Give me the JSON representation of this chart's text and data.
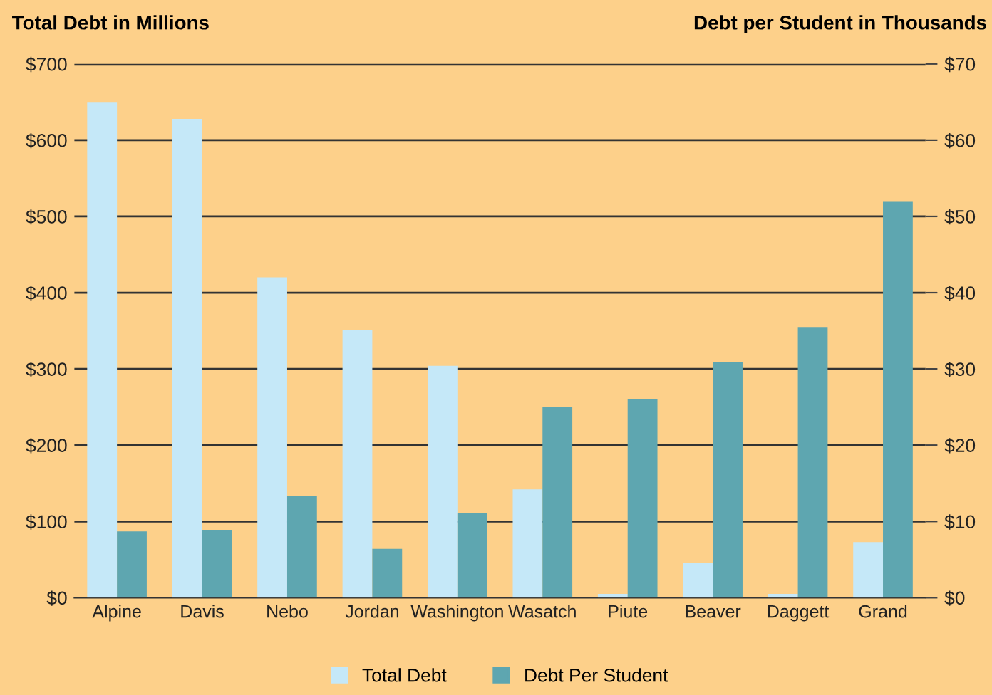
{
  "chart_data": {
    "type": "bar",
    "ylabel": "Total Debt in Millions",
    "y2label": "Debt per Student in Thousands",
    "categories": [
      "Alpine",
      "Davis",
      "Nebo",
      "Jordan",
      "Washington",
      "Wasatch",
      "Piute",
      "Beaver",
      "Daggett",
      "Grand"
    ],
    "series": [
      {
        "name": "Total Debt",
        "color": "#c5e8f8",
        "values": [
          650,
          628,
          420,
          351,
          304,
          142,
          5,
          46,
          5,
          73
        ]
      },
      {
        "name": "Debt Per Student",
        "color": "#5ea6b0",
        "axis": "y2",
        "values": [
          8.7,
          8.9,
          13.3,
          6.4,
          11.1,
          25,
          26,
          30.9,
          35.5,
          52
        ]
      }
    ],
    "ylim": [
      0,
      700
    ],
    "yticks": [
      {
        "value": 0,
        "label": "$0"
      },
      {
        "value": 100,
        "label": "$100"
      },
      {
        "value": 200,
        "label": "$200"
      },
      {
        "value": 300,
        "label": "$300"
      },
      {
        "value": 400,
        "label": "$400"
      },
      {
        "value": 500,
        "label": "$500"
      },
      {
        "value": 600,
        "label": "$600"
      },
      {
        "value": 700,
        "label": "$700"
      }
    ],
    "y2lim": [
      0,
      70
    ],
    "y2ticks": [
      {
        "value": 0,
        "label": "$0"
      },
      {
        "value": 10,
        "label": "$10"
      },
      {
        "value": 20,
        "label": "$20"
      },
      {
        "value": 30,
        "label": "$30"
      },
      {
        "value": 40,
        "label": "$40"
      },
      {
        "value": 50,
        "label": "$50"
      },
      {
        "value": 60,
        "label": "$60"
      },
      {
        "value": 70,
        "label": "$70"
      }
    ],
    "grid": "y",
    "legend": "bottom"
  }
}
